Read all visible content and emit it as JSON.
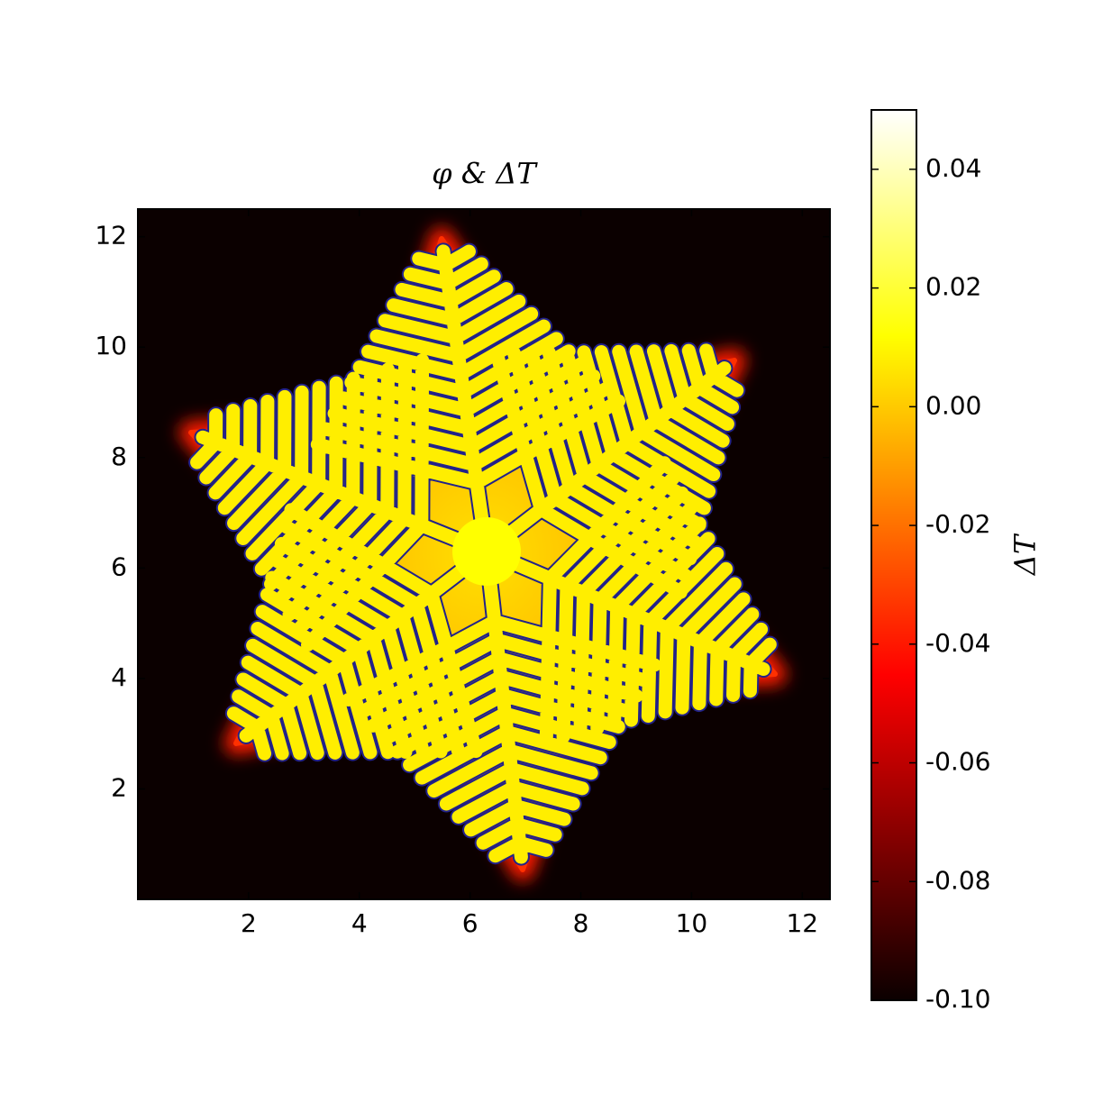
{
  "chart_data": {
    "type": "heatmap",
    "title": "φ & ΔT",
    "xlim": [
      0,
      12.5
    ],
    "ylim": [
      0,
      12.5
    ],
    "xticks": [
      2,
      4,
      6,
      8,
      10,
      12
    ],
    "yticks": [
      2,
      4,
      6,
      8,
      10,
      12
    ],
    "colorbar": {
      "label": "ΔT",
      "lim": [
        -0.1,
        0.05
      ],
      "ticks": [
        {
          "value": -0.1,
          "label": "-0.10"
        },
        -0.08,
        -0.06,
        -0.04,
        -0.02,
        {
          "value": 0,
          "label": "0.00"
        },
        0.02,
        0.04
      ],
      "colormap": "hot"
    },
    "background": "#0b0000",
    "contour_color": "#22228a"
  }
}
